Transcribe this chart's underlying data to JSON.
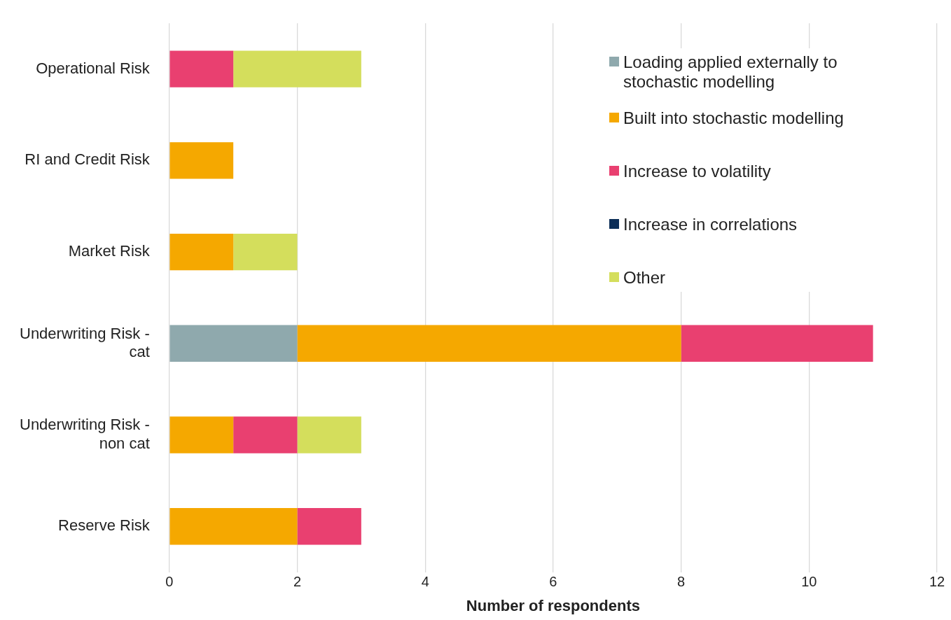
{
  "chart_data": {
    "type": "bar",
    "orientation": "horizontal",
    "stacked": true,
    "categories": [
      "Operational Risk",
      "RI and Credit Risk",
      "Market Risk",
      "Underwriting Risk - cat",
      "Underwriting Risk - non cat",
      "Reserve Risk"
    ],
    "series": [
      {
        "name": "Loading applied externally to stochastic modelling",
        "color": "#8fa9ad",
        "values": [
          0,
          0,
          0,
          2,
          0,
          0
        ]
      },
      {
        "name": "Built into stochastic modelling",
        "color": "#f5a800",
        "values": [
          0,
          1,
          1,
          6,
          1,
          2
        ]
      },
      {
        "name": "Increase to volatility",
        "color": "#e94070",
        "values": [
          1,
          0,
          0,
          3,
          1,
          1
        ]
      },
      {
        "name": "Increase in correlations",
        "color": "#0b2d57",
        "values": [
          0,
          0,
          0,
          0,
          0,
          0
        ]
      },
      {
        "name": "Other",
        "color": "#d4de5c",
        "values": [
          2,
          0,
          1,
          0,
          1,
          0
        ]
      }
    ],
    "xlabel": "Number of respondents",
    "xlim": [
      0,
      12
    ],
    "xticks": [
      0,
      2,
      4,
      6,
      8,
      10,
      12
    ],
    "grid": "x",
    "legend": "top right"
  }
}
